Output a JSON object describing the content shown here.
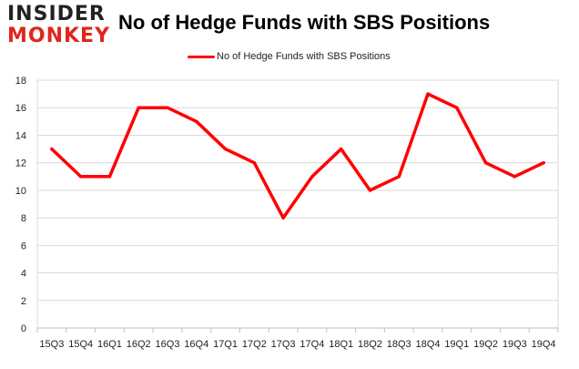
{
  "logo": {
    "line1": "INSIDER",
    "line2": "MONKEY"
  },
  "colors": {
    "series": "#ff0000",
    "logo_accent": "#e0261b",
    "grid": "#d9d9d9"
  },
  "chart_data": {
    "type": "line",
    "title": "No of Hedge Funds with SBS Positions",
    "xlabel": "",
    "ylabel": "",
    "legend_position": "top",
    "grid": true,
    "ylim": [
      0,
      18
    ],
    "yticks": [
      0,
      2,
      4,
      6,
      8,
      10,
      12,
      14,
      16,
      18
    ],
    "categories": [
      "15Q3",
      "15Q4",
      "16Q1",
      "16Q2",
      "16Q3",
      "16Q4",
      "17Q1",
      "17Q2",
      "17Q3",
      "17Q4",
      "18Q1",
      "18Q2",
      "18Q3",
      "18Q4",
      "19Q1",
      "19Q2",
      "19Q3",
      "19Q4"
    ],
    "series": [
      {
        "name": "No of Hedge Funds with SBS Positions",
        "values": [
          13,
          11,
          11,
          16,
          16,
          15,
          13,
          12,
          8,
          11,
          13,
          10,
          11,
          17,
          16,
          12,
          11,
          12
        ]
      }
    ]
  }
}
